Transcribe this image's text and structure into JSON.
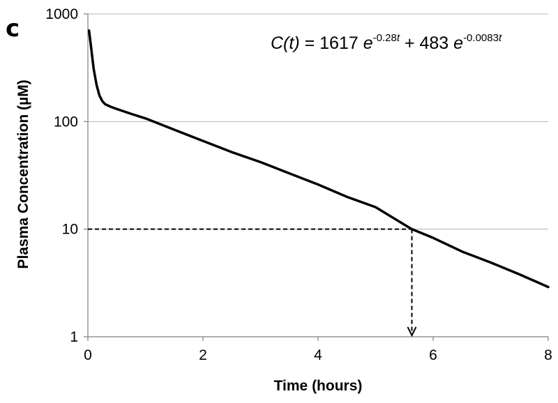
{
  "chart_data": {
    "type": "line",
    "panel_label": "c",
    "title": "",
    "xlabel": "Time (hours)",
    "ylabel": "Plasma Concentration (µM)",
    "xlim": [
      0,
      8
    ],
    "ylim": [
      1,
      1000
    ],
    "yscale": "log",
    "xticks": [
      0,
      2,
      4,
      6,
      8
    ],
    "xtick_labels": [
      "0",
      "2",
      "4",
      "6",
      "8"
    ],
    "yticks": [
      1,
      10,
      100,
      1000
    ],
    "ytick_labels": [
      "1",
      "10",
      "100",
      "1000"
    ],
    "grid": "horizontal",
    "legend": "none",
    "equation": {
      "lhs": "C(t)",
      "equals": " = 1617 ",
      "e1": "e",
      "exp1_prefix": "-0.28",
      "exp1_var": "t",
      "plus": " + 483 ",
      "e2": "e",
      "exp2_prefix": "-0.0083",
      "exp2_var": "t"
    },
    "series": [
      {
        "x": [
          0.02,
          0.05,
          0.08,
          0.1,
          0.15,
          0.2,
          0.25,
          0.3,
          0.4,
          0.5,
          0.75,
          1,
          1.5,
          2,
          2.5,
          3,
          3.5,
          4,
          4.5,
          5,
          5.5,
          5.63,
          6,
          6.5,
          7,
          7.5,
          8
        ],
        "y": [
          700,
          520,
          380,
          310,
          220,
          175,
          155,
          145,
          137,
          131,
          118,
          107,
          84,
          66,
          52,
          42,
          33,
          26,
          20,
          16,
          11,
          10,
          8.3,
          6.2,
          4.9,
          3.8,
          2.9
        ]
      }
    ],
    "annotation": {
      "y_level": 10,
      "x_at_y_level": 5.63,
      "style": "dashed",
      "arrow": "down"
    },
    "colors": {
      "line": "#000000",
      "grid": "#b3b3b3",
      "axis": "#7f7f7f"
    }
  }
}
